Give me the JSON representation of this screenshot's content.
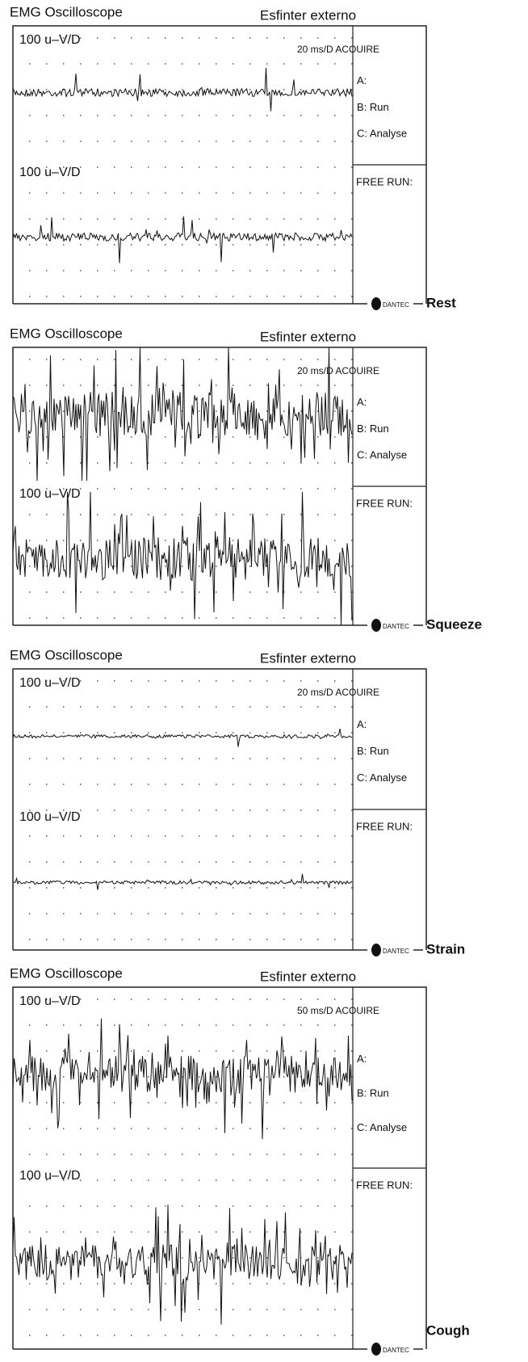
{
  "panels": [
    {
      "header": {
        "left": "EMG Oscilloscope",
        "right": "Esfinter externo"
      },
      "channel_labels": [
        "100 u–V/D",
        "100 u–V/D"
      ],
      "timebase": "20 ms/D ACOUIRE",
      "menu": [
        "A:",
        "B: Run",
        "C: Analyse"
      ],
      "free_run": "FREE RUN:",
      "brand": "DANTEC",
      "condition": "Rest"
    },
    {
      "header": {
        "left": "EMG Oscilloscope",
        "right": "Esfinter externo"
      },
      "channel_labels": [
        "100 u–V/D"
      ],
      "timebase": "20 ms/D ACOUIRE",
      "menu": [
        "A:",
        "B: Run",
        "C: Analyse"
      ],
      "free_run": "FREE RUN:",
      "brand": "DANTEC",
      "condition": "Squeeze"
    },
    {
      "header": {
        "left": "EMG Oscilloscope",
        "right": "Esfinter externo"
      },
      "channel_labels": [
        "100 u–V/D",
        "100 u–V/D"
      ],
      "timebase": "20 ms/D ACOUIRE",
      "menu": [
        "A:",
        "B: Run",
        "C: Analyse"
      ],
      "free_run": "FREE RUN:",
      "brand": "DANTEC",
      "condition": "Strain"
    },
    {
      "header": {
        "left": "EMG Oscilloscope",
        "right": "Esfinter externo"
      },
      "channel_labels": [
        "100 u–V/D",
        "100 u–V/D"
      ],
      "timebase": "50 ms/D ACOUIRE",
      "menu": [
        "A:",
        "B: Run",
        "C: Analyse"
      ],
      "free_run": "FREE RUN:",
      "brand": "DANTEC",
      "condition": "Cough"
    }
  ]
}
